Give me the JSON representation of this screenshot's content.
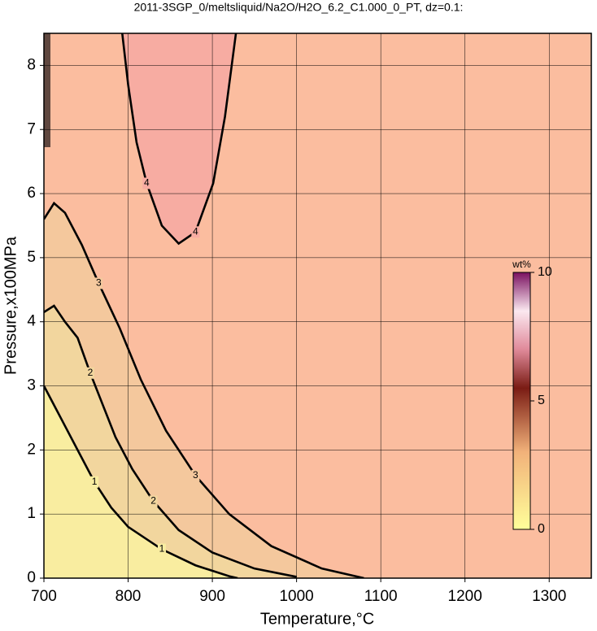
{
  "chart_data": {
    "type": "contour",
    "title": "2011-3SGP_0/meltsliquid/Na2O/H2O_6.2_C1.000_0_PT, dz=0.1:",
    "x_label": "Temperature,°C",
    "y_label": "Pressure,x100MPa",
    "xlim": [
      700,
      1350
    ],
    "ylim": [
      0,
      8.5
    ],
    "xticks": [
      700,
      800,
      900,
      1000,
      1100,
      1200,
      1300
    ],
    "yticks": [
      0,
      1,
      2,
      3,
      4,
      5,
      6,
      7,
      8
    ],
    "grid": true,
    "background": "#fbbd9f",
    "contours": [
      {
        "level": 4,
        "fill": "#f7aca2",
        "x": [
          793,
          800,
          810,
          822,
          840,
          860,
          880,
          901,
          915,
          928
        ],
        "y": [
          8.5,
          7.7,
          6.8,
          6.16,
          5.5,
          5.22,
          5.4,
          6.16,
          7.2,
          8.5
        ]
      },
      {
        "level": 3,
        "fill": "#f4c89d",
        "x": [
          700,
          712,
          725,
          745,
          765,
          790,
          815,
          845,
          880,
          920,
          970,
          1030,
          1080
        ],
        "y": [
          5.6,
          5.85,
          5.7,
          5.2,
          4.6,
          3.9,
          3.1,
          2.3,
          1.6,
          1.0,
          0.5,
          0.15,
          0
        ]
      },
      {
        "level": 2,
        "fill": "#f2d69e",
        "x": [
          700,
          712,
          725,
          740,
          755,
          770,
          785,
          805,
          830,
          860,
          900,
          950,
          1000
        ],
        "y": [
          4.15,
          4.25,
          4.0,
          3.75,
          3.2,
          2.7,
          2.2,
          1.7,
          1.2,
          0.75,
          0.4,
          0.15,
          0.02
        ]
      },
      {
        "level": 1,
        "fill": "#f9eda0",
        "x": [
          700,
          720,
          740,
          760,
          780,
          800,
          840,
          880,
          920,
          930
        ],
        "y": [
          3.0,
          2.5,
          2.0,
          1.5,
          1.1,
          0.8,
          0.45,
          0.2,
          0.03,
          0
        ]
      }
    ],
    "colorbar": {
      "label": "wt%",
      "lim": [
        0,
        10
      ],
      "ticks": [
        0,
        5,
        10
      ]
    }
  }
}
